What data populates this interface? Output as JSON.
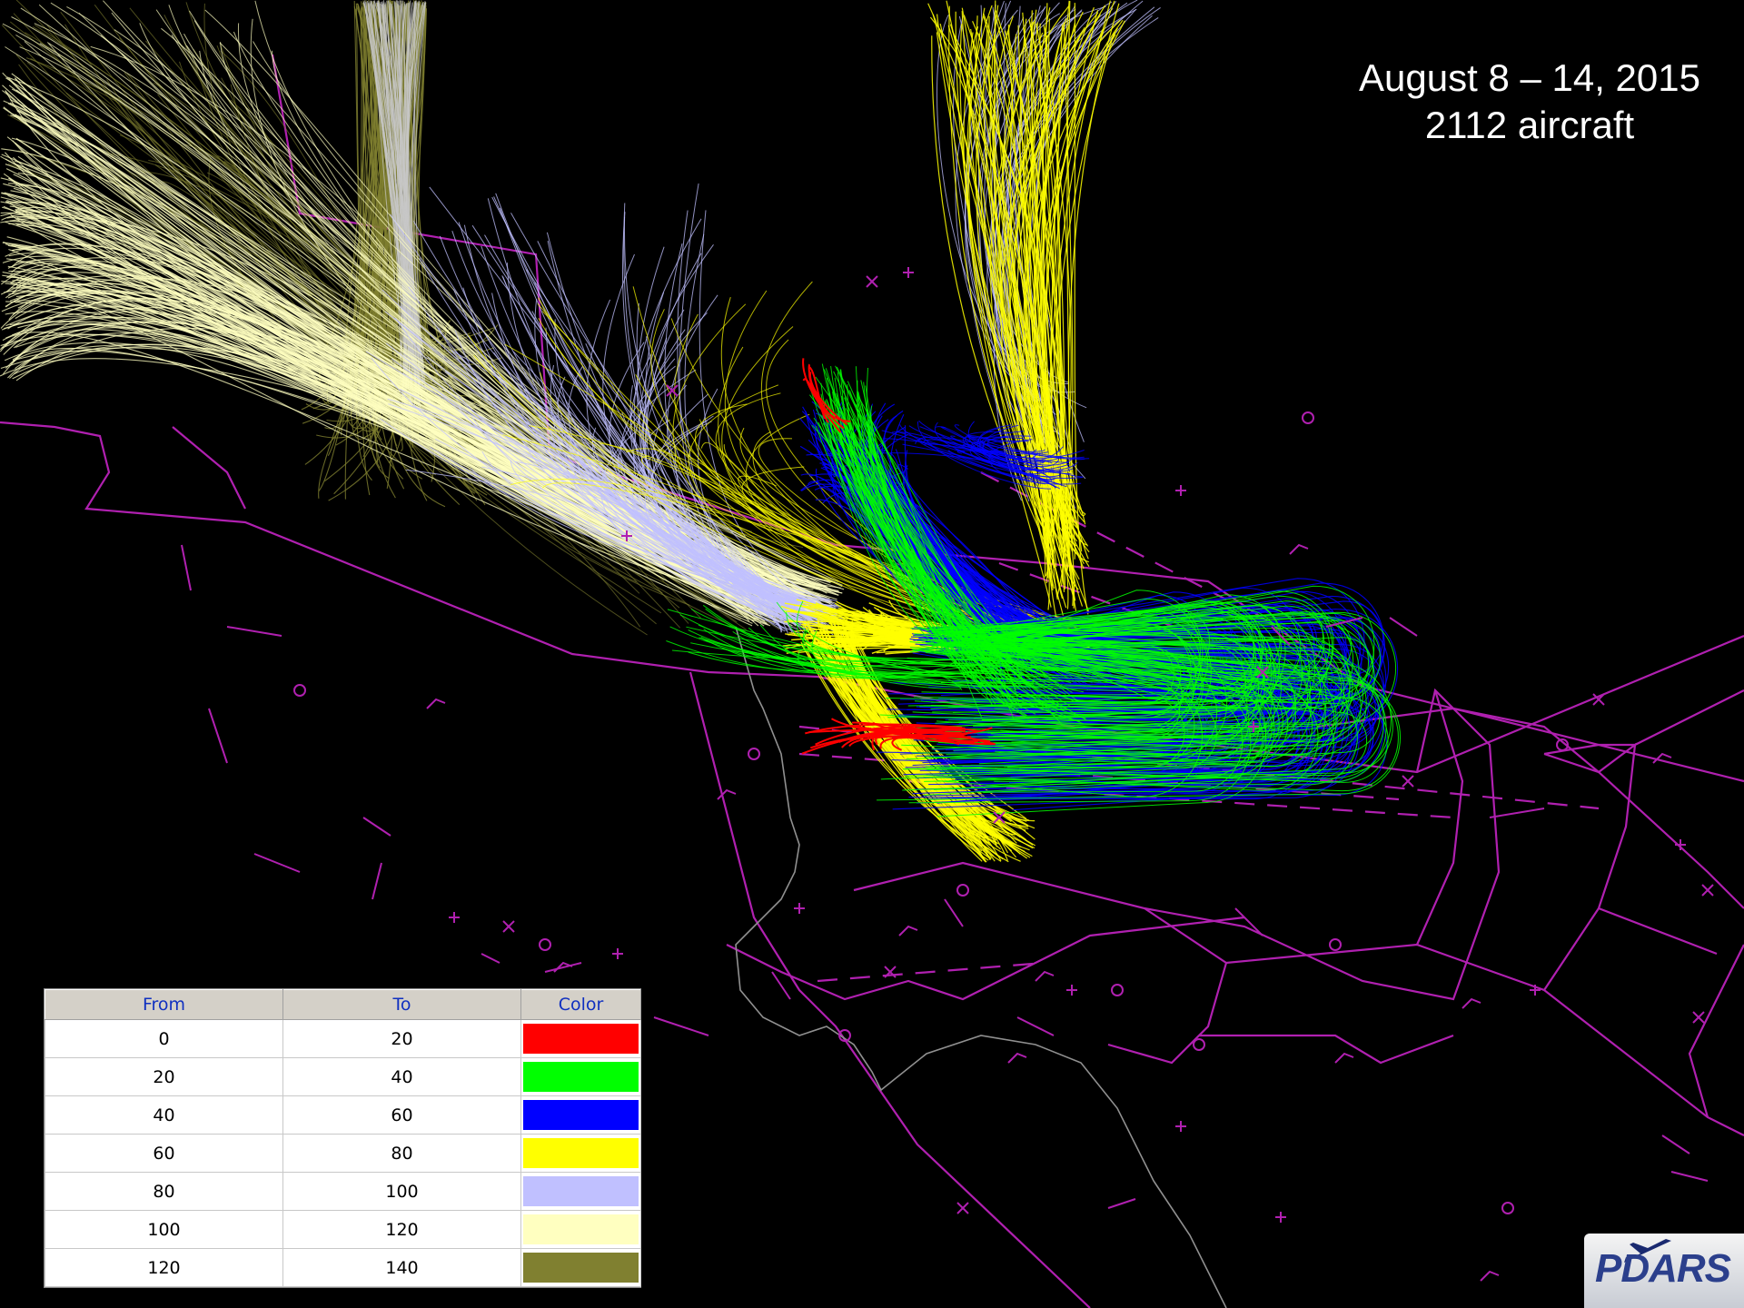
{
  "title": {
    "date_range": "August 8 – 14, 2015",
    "aircraft_count": "2112 aircraft"
  },
  "legend": {
    "headers": {
      "from": "From",
      "to": "To",
      "color": "Color"
    },
    "rows": [
      {
        "from": "0",
        "to": "20",
        "color": "#ff0000"
      },
      {
        "from": "20",
        "to": "40",
        "color": "#00ff00"
      },
      {
        "from": "40",
        "to": "60",
        "color": "#0000ff"
      },
      {
        "from": "60",
        "to": "80",
        "color": "#ffff00"
      },
      {
        "from": "80",
        "to": "100",
        "color": "#c0c0ff"
      },
      {
        "from": "100",
        "to": "120",
        "color": "#ffffc0"
      },
      {
        "from": "120",
        "to": "140",
        "color": "#808030"
      }
    ]
  },
  "logo": {
    "text": "PDARS"
  },
  "colors": {
    "background": "#000000",
    "airspace_lines": "#b020b0",
    "coastline": "#909090"
  }
}
